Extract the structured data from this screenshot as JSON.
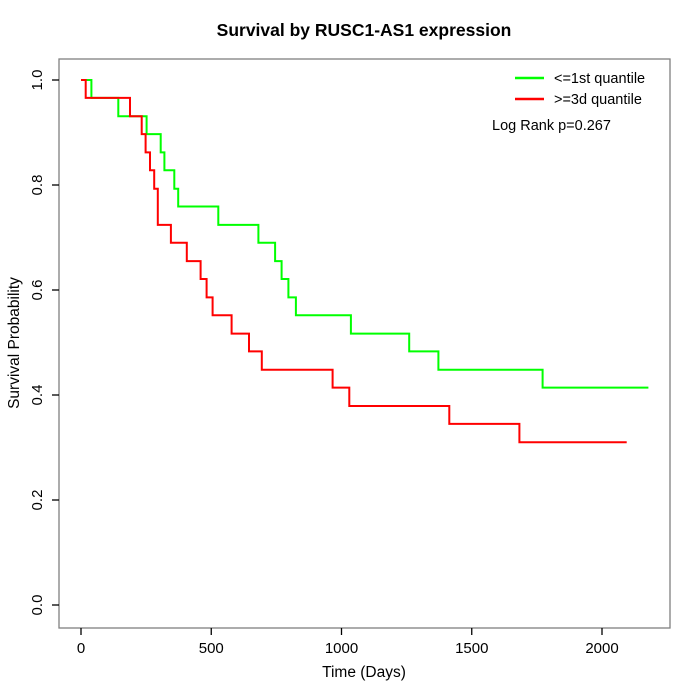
{
  "title": "Survival by RUSC1-AS1 expression",
  "annotation": "Log Rank p=0.267",
  "legend": {
    "items": [
      {
        "label": "<=1st quantile",
        "color": "#00ff00"
      },
      {
        "label": ">=3d quantile",
        "color": "#ff0000"
      }
    ]
  },
  "chart_data": {
    "type": "line",
    "subtype": "kaplan-meier-step-function",
    "title": "Survival by RUSC1-AS1 expression",
    "xlabel": "Time (Days)",
    "ylabel": "Survival Probability",
    "xlim": [
      0,
      2250
    ],
    "ylim": [
      0.0,
      1.0
    ],
    "x_ticks": [
      0,
      500,
      1000,
      1500,
      2000
    ],
    "x_tick_labels": [
      "0",
      "500",
      "1000",
      "1500",
      "2000"
    ],
    "y_ticks": [
      0.0,
      0.2,
      0.4,
      0.6,
      0.8,
      1.0
    ],
    "y_tick_labels": [
      "0.0",
      "0.2",
      "0.4",
      "0.6",
      "0.8",
      "1.0"
    ],
    "grid": false,
    "legend_position": "top-right",
    "annotation": "Log Rank p=0.267",
    "frame_color": "#808080",
    "tick_color": "#000000",
    "series": [
      {
        "name": "<=1st quantile",
        "color": "#00ff00",
        "start_prob": 1.0,
        "end_time": 2178,
        "drops": [
          {
            "time": 40,
            "prob": 0.966
          },
          {
            "time": 143,
            "prob": 0.931
          },
          {
            "time": 252,
            "prob": 0.897
          },
          {
            "time": 306,
            "prob": 0.862
          },
          {
            "time": 320,
            "prob": 0.828
          },
          {
            "time": 358,
            "prob": 0.793
          },
          {
            "time": 373,
            "prob": 0.759
          },
          {
            "time": 527,
            "prob": 0.724
          },
          {
            "time": 681,
            "prob": 0.69
          },
          {
            "time": 745,
            "prob": 0.655
          },
          {
            "time": 770,
            "prob": 0.621
          },
          {
            "time": 796,
            "prob": 0.586
          },
          {
            "time": 825,
            "prob": 0.552
          },
          {
            "time": 1036,
            "prob": 0.517
          },
          {
            "time": 1260,
            "prob": 0.483
          },
          {
            "time": 1372,
            "prob": 0.448
          },
          {
            "time": 1772,
            "prob": 0.414
          }
        ]
      },
      {
        "name": ">=3d quantile",
        "color": "#ff0000",
        "start_prob": 1.0,
        "end_time": 2095,
        "drops": [
          {
            "time": 18,
            "prob": 0.966
          },
          {
            "time": 188,
            "prob": 0.931
          },
          {
            "time": 233,
            "prob": 0.897
          },
          {
            "time": 248,
            "prob": 0.862
          },
          {
            "time": 265,
            "prob": 0.828
          },
          {
            "time": 281,
            "prob": 0.793
          },
          {
            "time": 295,
            "prob": 0.724
          },
          {
            "time": 345,
            "prob": 0.69
          },
          {
            "time": 406,
            "prob": 0.655
          },
          {
            "time": 459,
            "prob": 0.621
          },
          {
            "time": 482,
            "prob": 0.586
          },
          {
            "time": 505,
            "prob": 0.552
          },
          {
            "time": 578,
            "prob": 0.517
          },
          {
            "time": 645,
            "prob": 0.483
          },
          {
            "time": 694,
            "prob": 0.448
          },
          {
            "time": 966,
            "prob": 0.414
          },
          {
            "time": 1030,
            "prob": 0.379
          },
          {
            "time": 1414,
            "prob": 0.345
          },
          {
            "time": 1683,
            "prob": 0.31
          }
        ]
      }
    ]
  }
}
